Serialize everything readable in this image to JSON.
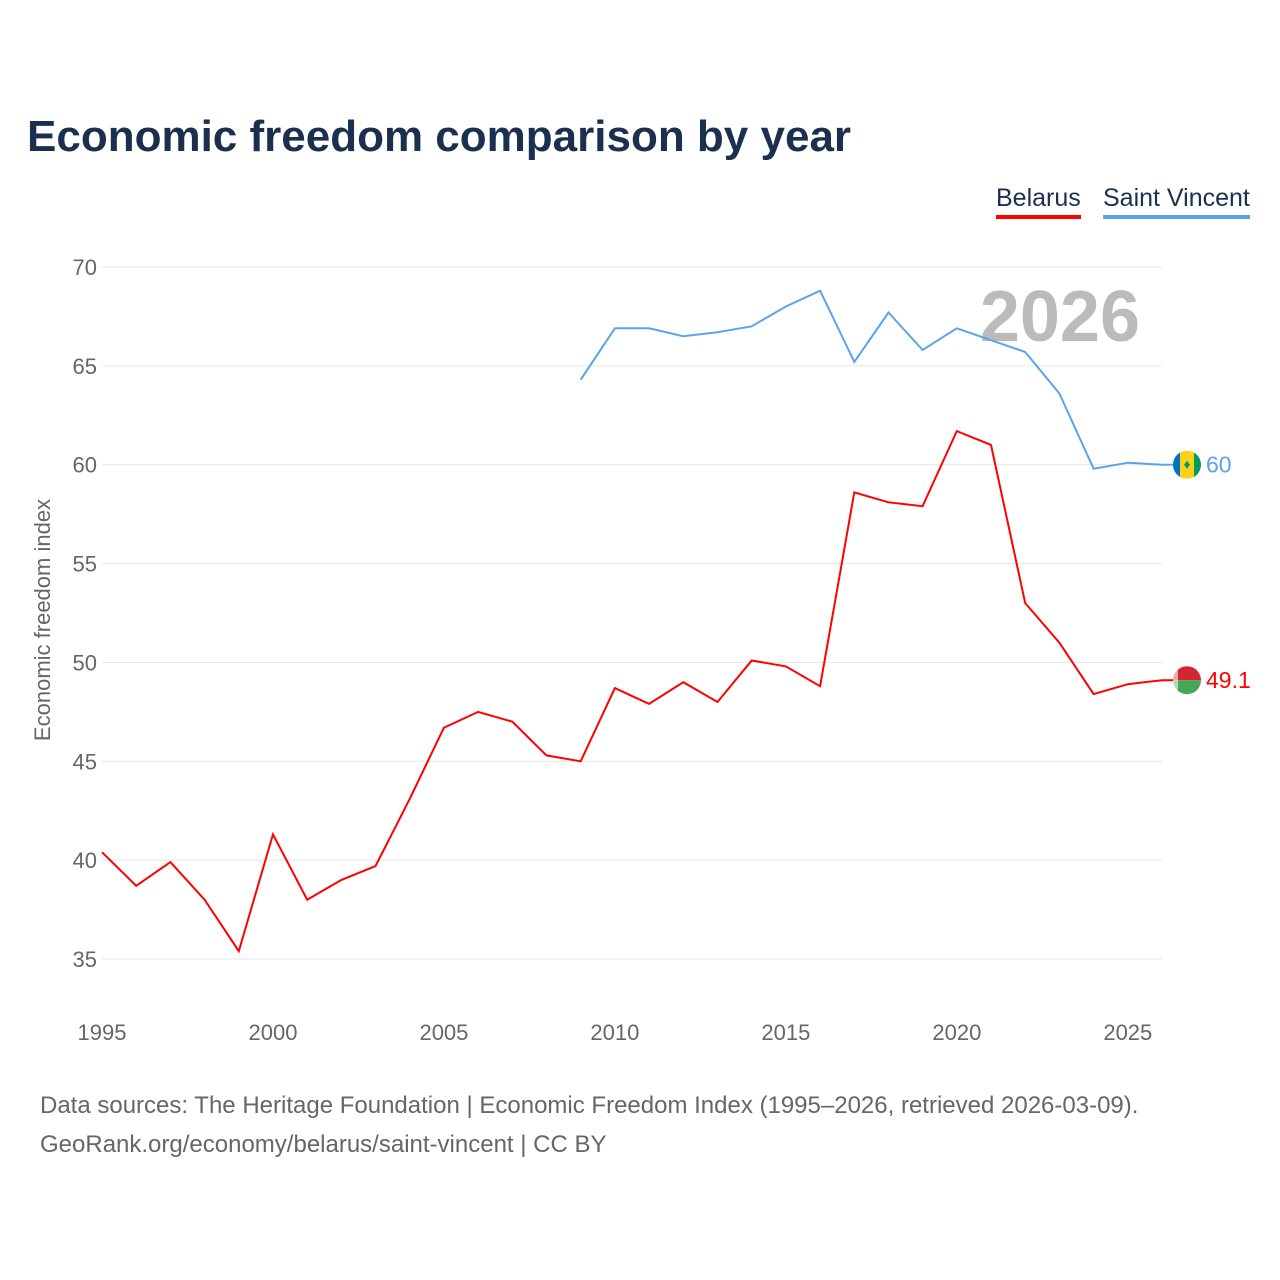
{
  "title": "Economic freedom comparison by year",
  "footer": {
    "line1": "Data sources: The Heritage Foundation | Economic Freedom Index (1995–2026, retrieved 2026-03-09).",
    "line2": "GeoRank.org/economy/belarus/saint-vincent | CC BY"
  },
  "chart_data": {
    "type": "line",
    "title": "Economic freedom comparison by year",
    "ylabel": "Economic freedom index",
    "xlabel": "",
    "ylim": [
      35,
      70
    ],
    "xlim": [
      1995,
      2026
    ],
    "yticks": [
      35,
      40,
      45,
      50,
      55,
      60,
      65,
      70
    ],
    "xticks": [
      1995,
      2000,
      2005,
      2010,
      2015,
      2020,
      2025
    ],
    "year_watermark": "2026",
    "legend_position": "top-right",
    "series": [
      {
        "name": "Belarus",
        "color": "#ff0000",
        "end_label": "49.1",
        "flag": "belarus-flag",
        "x": [
          1995,
          1996,
          1997,
          1998,
          1999,
          2000,
          2001,
          2002,
          2003,
          2004,
          2005,
          2006,
          2007,
          2008,
          2009,
          2010,
          2011,
          2012,
          2013,
          2014,
          2015,
          2016,
          2017,
          2018,
          2019,
          2020,
          2021,
          2022,
          2023,
          2024,
          2025,
          2026
        ],
        "values": [
          40.4,
          38.7,
          39.9,
          38.0,
          35.4,
          41.3,
          38.0,
          39.0,
          39.7,
          43.1,
          46.7,
          47.5,
          47.0,
          45.3,
          45.0,
          48.7,
          47.9,
          49.0,
          48.0,
          50.1,
          49.8,
          48.8,
          58.6,
          58.1,
          57.9,
          61.7,
          61.0,
          53.0,
          51.0,
          48.4,
          48.9,
          49.1
        ]
      },
      {
        "name": "Saint Vincent",
        "color": "#5ba4ea",
        "end_label": "60",
        "flag": "saint-vincent-flag",
        "x": [
          2009,
          2010,
          2011,
          2012,
          2013,
          2014,
          2015,
          2016,
          2017,
          2018,
          2019,
          2020,
          2021,
          2022,
          2023,
          2024,
          2025,
          2026
        ],
        "values": [
          64.3,
          66.9,
          66.9,
          66.5,
          66.7,
          67.0,
          68.0,
          68.8,
          65.2,
          67.7,
          65.8,
          66.9,
          66.3,
          65.7,
          63.6,
          59.8,
          60.1,
          60.0
        ]
      }
    ]
  }
}
